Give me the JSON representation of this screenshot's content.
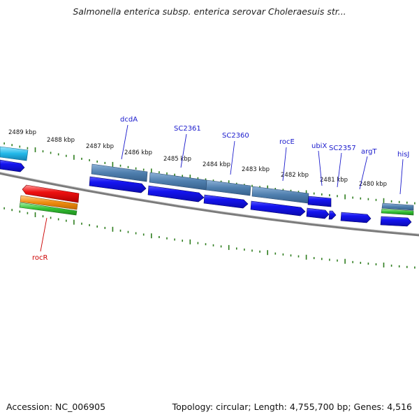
{
  "title": "Salmonella enterica subsp. enterica serovar Choleraesuis str...",
  "accession_text": "Accession: NC_006905",
  "summary_text": "Topology: circular; Length: 4,755,700 bp; Genes: 4,516",
  "colors": {
    "backbone": "#808080",
    "tick": "#2e7d1e",
    "cds_forward": "#1010e6",
    "cds_reverse_label": "#cc0000",
    "gene_label": "#1a1acc",
    "operon_steel": "#4f7fae",
    "cyan": "#22b8e8",
    "red": "#ee1111",
    "orange": "#f08c10",
    "green": "#33c033"
  },
  "kbp_labels": [
    "2489 kbp",
    "2488 kbp",
    "2487 kbp",
    "2486 kbp",
    "2485 kbp",
    "2484 kbp",
    "2483 kbp",
    "2482 kbp",
    "2481 kbp",
    "2480 kbp"
  ],
  "gene_labels": {
    "dcdA": "dcdA",
    "SC2361": "SC2361",
    "SC2360": "SC2360",
    "rocE": "rocE",
    "ubiX": "ubiX",
    "SC2357": "SC2357",
    "argT": "argT",
    "hisJ": "hisJ",
    "rocR": "rocR"
  }
}
